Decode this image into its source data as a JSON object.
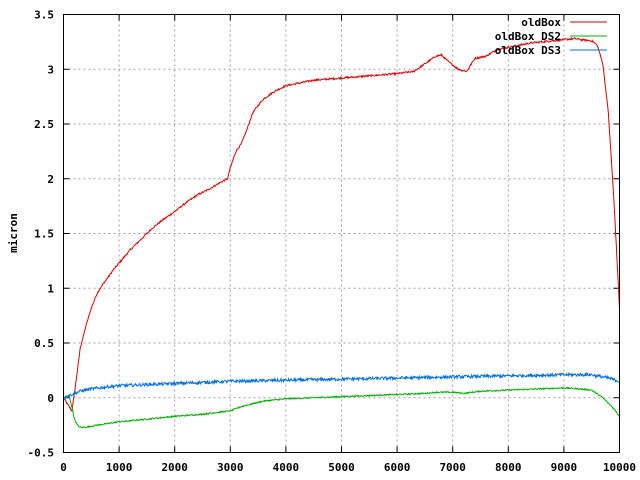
{
  "chart_data": {
    "type": "line",
    "title": "",
    "xlabel": "",
    "ylabel": "micron",
    "xlim": [
      0,
      10000
    ],
    "ylim": [
      -0.5,
      3.5
    ],
    "xticks": [
      0,
      1000,
      2000,
      3000,
      4000,
      5000,
      6000,
      7000,
      8000,
      9000,
      10000
    ],
    "yticks": [
      -0.5,
      0,
      0.5,
      1,
      1.5,
      2,
      2.5,
      3,
      3.5
    ],
    "ytick_labels": [
      "-0.5",
      "0",
      "0.5",
      "1",
      "1.5",
      "2",
      "2.5",
      "3",
      "3.5"
    ],
    "grid": true,
    "legend_position": "top-right",
    "series": [
      {
        "name": "oldBox",
        "color": "#e00000",
        "noise": 0.008,
        "x": [
          0,
          150,
          200,
          250,
          300,
          400,
          500,
          600,
          700,
          800,
          900,
          1000,
          1200,
          1400,
          1600,
          1800,
          2000,
          2200,
          2400,
          2600,
          2800,
          2950,
          3000,
          3100,
          3200,
          3300,
          3400,
          3500,
          3600,
          3800,
          4000,
          4500,
          5000,
          5500,
          6000,
          6300,
          6500,
          6700,
          6800,
          6900,
          7000,
          7100,
          7250,
          7400,
          7600,
          7800,
          8000,
          8400,
          8800,
          9200,
          9300,
          9500,
          9600,
          9700,
          9800,
          9900,
          10000
        ],
        "y": [
          0,
          -0.12,
          0.05,
          0.25,
          0.45,
          0.65,
          0.82,
          0.95,
          1.03,
          1.1,
          1.17,
          1.23,
          1.35,
          1.45,
          1.55,
          1.63,
          1.7,
          1.78,
          1.85,
          1.9,
          1.96,
          2.0,
          2.1,
          2.25,
          2.32,
          2.45,
          2.6,
          2.67,
          2.73,
          2.8,
          2.85,
          2.9,
          2.92,
          2.94,
          2.96,
          2.98,
          3.05,
          3.12,
          3.13,
          3.08,
          3.04,
          3.0,
          2.98,
          3.1,
          3.12,
          3.18,
          3.2,
          3.24,
          3.26,
          3.28,
          3.27,
          3.26,
          3.22,
          3.05,
          2.6,
          1.8,
          0.82
        ]
      },
      {
        "name": "oldBox DS2",
        "color": "#00b000",
        "noise": 0.006,
        "x": [
          0,
          100,
          150,
          200,
          250,
          300,
          400,
          600,
          1000,
          2000,
          2500,
          3000,
          3200,
          3600,
          4000,
          5000,
          5500,
          6000,
          6500,
          6700,
          7000,
          7200,
          7500,
          8000,
          9000,
          9300,
          9500,
          9700,
          9900,
          10000
        ],
        "y": [
          0,
          0.02,
          -0.08,
          -0.2,
          -0.25,
          -0.27,
          -0.27,
          -0.25,
          -0.22,
          -0.17,
          -0.15,
          -0.12,
          -0.08,
          -0.03,
          -0.01,
          0.01,
          0.02,
          0.03,
          0.04,
          0.05,
          0.05,
          0.04,
          0.06,
          0.07,
          0.09,
          0.08,
          0.07,
          0.0,
          -0.1,
          -0.17
        ]
      },
      {
        "name": "oldBox DS3",
        "color": "#0070e0",
        "noise": 0.014,
        "x": [
          0,
          100,
          200,
          300,
          500,
          800,
          1000,
          2000,
          3000,
          4000,
          5000,
          6000,
          7000,
          8000,
          9000,
          9500,
          9800,
          10000
        ],
        "y": [
          0.0,
          0.02,
          0.04,
          0.06,
          0.08,
          0.1,
          0.11,
          0.13,
          0.15,
          0.16,
          0.17,
          0.18,
          0.19,
          0.2,
          0.21,
          0.21,
          0.18,
          0.15
        ]
      }
    ]
  }
}
